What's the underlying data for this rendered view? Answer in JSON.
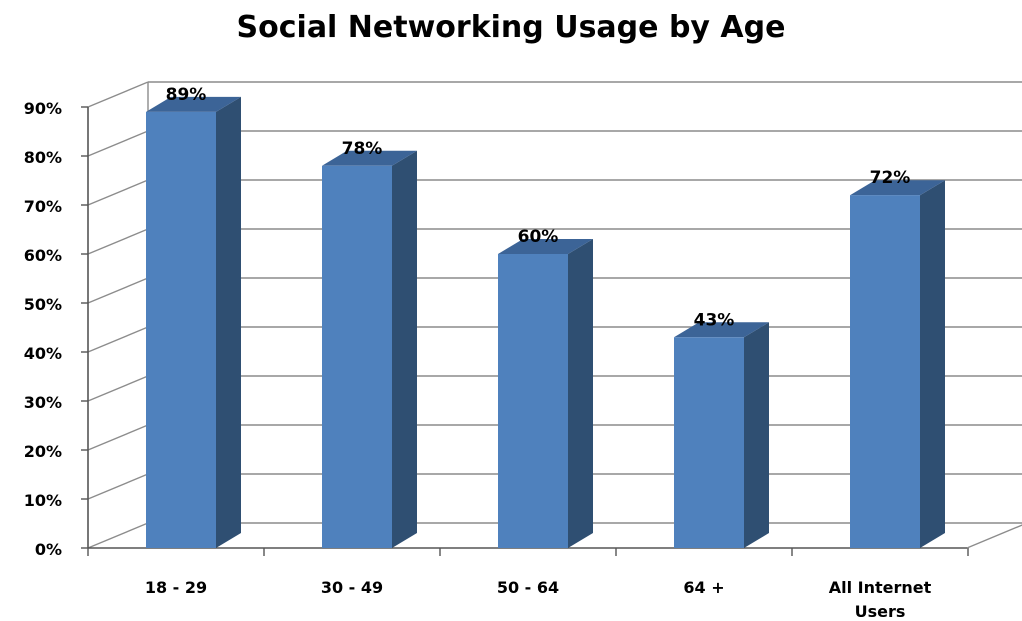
{
  "chart_data": {
    "type": "bar",
    "title": "Social Networking Usage by Age",
    "categories": [
      "18 - 29",
      "30 - 49",
      "50 - 64",
      "64 +",
      "All Internet Users"
    ],
    "values": [
      89,
      78,
      60,
      43,
      72
    ],
    "data_labels": [
      "89%",
      "78%",
      "60%",
      "43%",
      "72%"
    ],
    "yticks": [
      "0%",
      "10%",
      "20%",
      "30%",
      "40%",
      "50%",
      "60%",
      "70%",
      "80%",
      "90%"
    ],
    "ylim": [
      0,
      90
    ],
    "grid": true,
    "style": "3d-column",
    "colors": {
      "bar_front": "#4f81bd",
      "bar_side": "#2f4f72",
      "bar_top": "#3c6497",
      "grid": "#8c8c8c",
      "axis": "#555555"
    }
  }
}
